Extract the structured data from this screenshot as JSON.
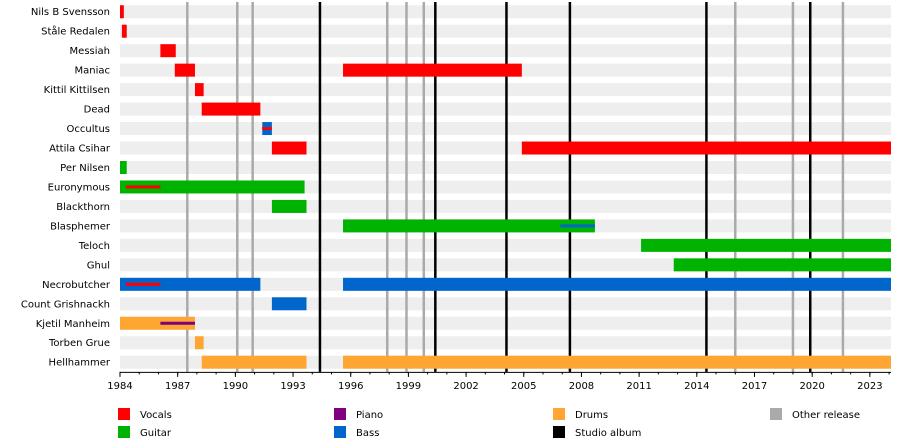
{
  "chart_data": {
    "type": "timeline",
    "title": "",
    "x_range": [
      1984,
      2024.1
    ],
    "x_ticks": [
      "1984",
      "1987",
      "1990",
      "1993",
      "1996",
      "1999",
      "2002",
      "2005",
      "2008",
      "2011",
      "2014",
      "2017",
      "2020",
      "2023"
    ],
    "members": [
      {
        "name": "Nils B Svensson",
        "bars": [
          {
            "role": "Vocals",
            "start": 1984.0,
            "end": 1984.2
          }
        ]
      },
      {
        "name": "Ståle Redalen",
        "bars": [
          {
            "role": "Vocals",
            "start": 1984.1,
            "end": 1984.35
          }
        ]
      },
      {
        "name": "Messiah",
        "bars": [
          {
            "role": "Vocals",
            "start": 1986.1,
            "end": 1986.9
          }
        ]
      },
      {
        "name": "Maniac",
        "bars": [
          {
            "role": "Vocals",
            "start": 1986.85,
            "end": 1987.9
          },
          {
            "role": "Vocals",
            "start": 1995.6,
            "end": 2004.9
          }
        ]
      },
      {
        "name": "Kittil Kittilsen",
        "bars": [
          {
            "role": "Vocals",
            "start": 1987.9,
            "end": 1988.35
          }
        ]
      },
      {
        "name": "Dead",
        "bars": [
          {
            "role": "Vocals",
            "start": 1988.25,
            "end": 1991.3
          }
        ]
      },
      {
        "name": "Occultus",
        "bars": [
          {
            "role": "Bass",
            "start": 1991.4,
            "end": 1991.9
          },
          {
            "role": "Vocals",
            "start": 1991.4,
            "end": 1991.9,
            "inner": true
          }
        ]
      },
      {
        "name": "Attila Csihar",
        "bars": [
          {
            "role": "Vocals",
            "start": 1991.9,
            "end": 1993.7
          },
          {
            "role": "Vocals",
            "start": 2004.9,
            "end": 2024.1
          }
        ]
      },
      {
        "name": "Per Nilsen",
        "bars": [
          {
            "role": "Guitar",
            "start": 1984.0,
            "end": 1984.35
          }
        ]
      },
      {
        "name": "Euronymous",
        "bars": [
          {
            "role": "Guitar",
            "start": 1984.0,
            "end": 1993.6
          },
          {
            "role": "Vocals",
            "start": 1984.3,
            "end": 1986.1,
            "inner": true
          }
        ]
      },
      {
        "name": "Blackthorn",
        "bars": [
          {
            "role": "Guitar",
            "start": 1991.9,
            "end": 1993.7
          }
        ]
      },
      {
        "name": "Blasphemer",
        "bars": [
          {
            "role": "Guitar",
            "start": 1995.6,
            "end": 2008.7
          },
          {
            "role": "Bass",
            "start": 2006.9,
            "end": 2008.7,
            "inner": true
          }
        ]
      },
      {
        "name": "Teloch",
        "bars": [
          {
            "role": "Guitar",
            "start": 2011.1,
            "end": 2024.1
          }
        ]
      },
      {
        "name": "Ghul",
        "bars": [
          {
            "role": "Guitar",
            "start": 2012.8,
            "end": 2024.1
          }
        ]
      },
      {
        "name": "Necrobutcher",
        "bars": [
          {
            "role": "Bass",
            "start": 1984.0,
            "end": 1991.3
          },
          {
            "role": "Vocals",
            "start": 1984.3,
            "end": 1986.1,
            "inner": true
          },
          {
            "role": "Bass",
            "start": 1995.6,
            "end": 2024.1
          }
        ]
      },
      {
        "name": "Count Grishnackh",
        "bars": [
          {
            "role": "Bass",
            "start": 1991.9,
            "end": 1993.7
          }
        ]
      },
      {
        "name": "Kjetil Manheim",
        "bars": [
          {
            "role": "Drums",
            "start": 1984.0,
            "end": 1987.9
          },
          {
            "role": "Piano",
            "start": 1986.1,
            "end": 1987.9,
            "inner": true
          }
        ]
      },
      {
        "name": "Torben Grue",
        "bars": [
          {
            "role": "Drums",
            "start": 1987.9,
            "end": 1988.35
          }
        ]
      },
      {
        "name": "Hellhammer",
        "bars": [
          {
            "role": "Drums",
            "start": 1988.25,
            "end": 1993.7
          },
          {
            "role": "Drums",
            "start": 1995.6,
            "end": 2024.1
          }
        ]
      }
    ],
    "other_releases": [
      1987.5,
      1990.1,
      1990.9,
      1997.9,
      1998.9,
      1999.8,
      2016.0,
      2019.0,
      2021.6
    ],
    "studio_albums": [
      1994.4,
      2000.4,
      2004.1,
      2007.4,
      2014.5,
      2019.9
    ],
    "legend": [
      {
        "label": "Vocals",
        "color": "#ff0000"
      },
      {
        "label": "Piano",
        "color": "#800080"
      },
      {
        "label": "Drums",
        "color": "#ffa531"
      },
      {
        "label": "Other release",
        "color": "#aaaaaa"
      },
      {
        "label": "Guitar",
        "color": "#00b300"
      },
      {
        "label": "Bass",
        "color": "#0066cc"
      },
      {
        "label": "Studio album",
        "color": "#000000"
      }
    ],
    "colors": {
      "Vocals": "#ff0000",
      "Guitar": "#00b300",
      "Bass": "#0066cc",
      "Drums": "#ffa531",
      "Piano": "#800080",
      "other_release": "#aaaaaa",
      "studio_album": "#000000",
      "row_shade": "#eeeeee"
    }
  }
}
